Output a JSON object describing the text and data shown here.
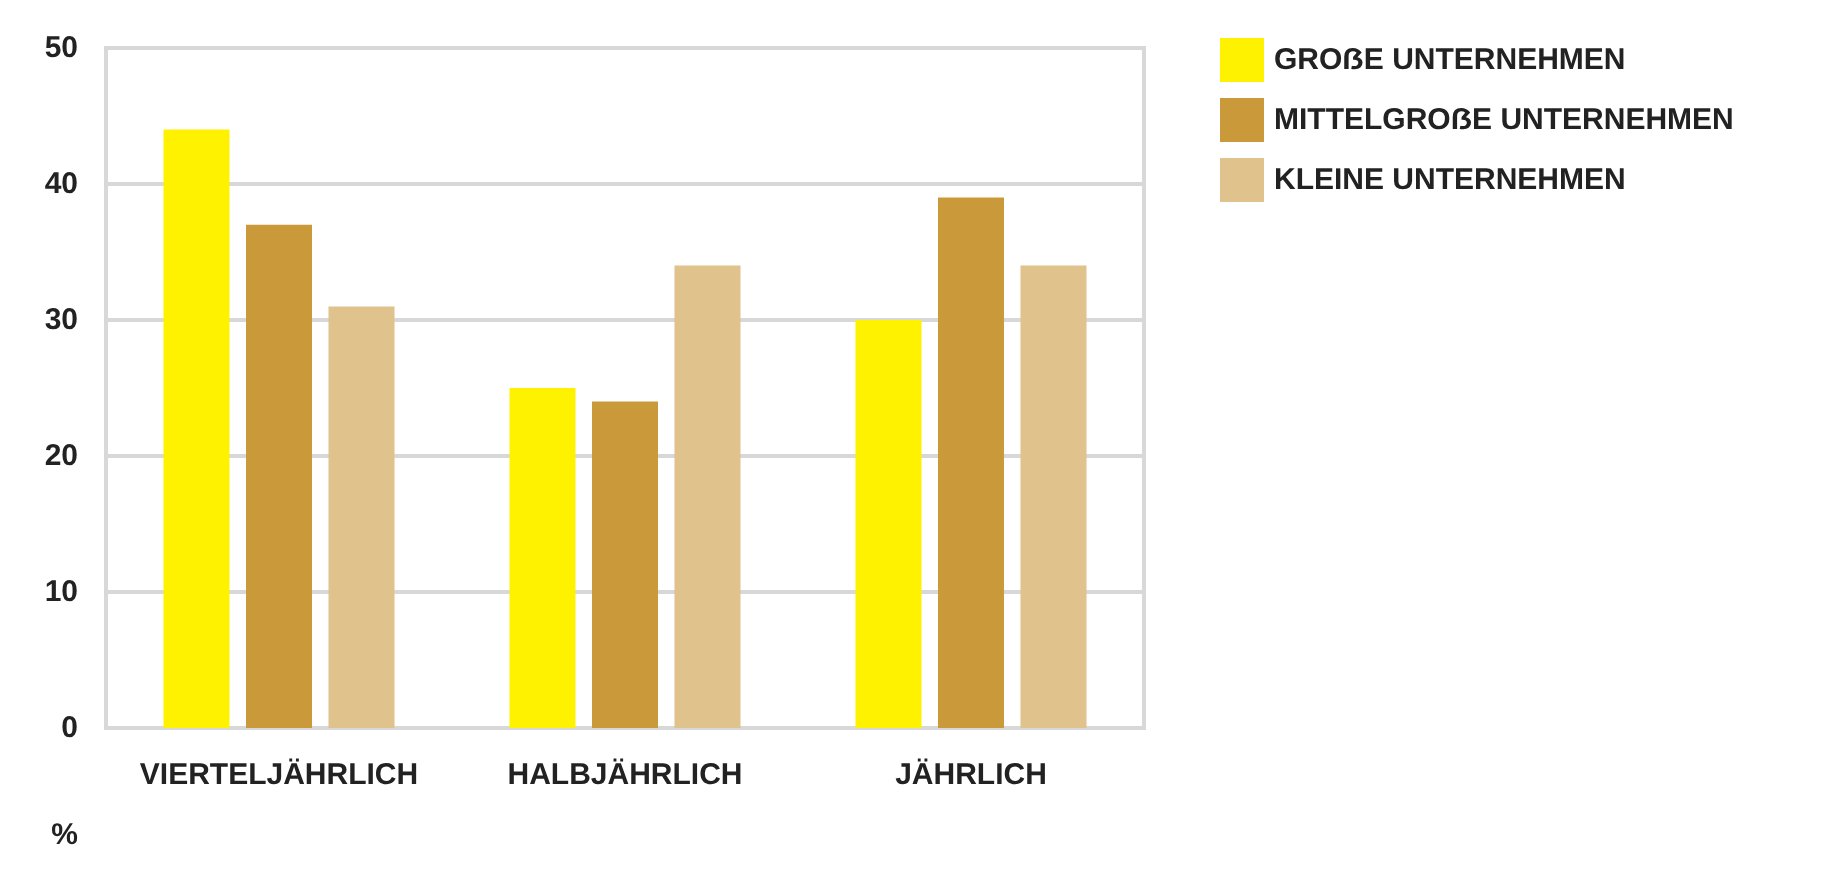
{
  "chart_data": {
    "type": "bar",
    "ylabel": "%",
    "categories": [
      "VIERTELJÄHRLICH",
      "HALBJÄHRLICH",
      "JÄHRLICH"
    ],
    "series": [
      {
        "name": "GROẞE UNTERNEHMEN",
        "color": "#fff200",
        "values": [
          44,
          25,
          30
        ]
      },
      {
        "name": "MITTELGROẞE UNTERNEHMEN",
        "color": "#c9993a",
        "values": [
          37,
          24,
          39
        ]
      },
      {
        "name": "KLEINE UNTERNEHMEN",
        "color": "#dfc28c",
        "values": [
          31,
          34,
          34
        ]
      }
    ],
    "ylim": [
      0,
      50
    ],
    "yticks": [
      0,
      10,
      20,
      30,
      40,
      50
    ],
    "grid": "y",
    "legend": "top right"
  }
}
